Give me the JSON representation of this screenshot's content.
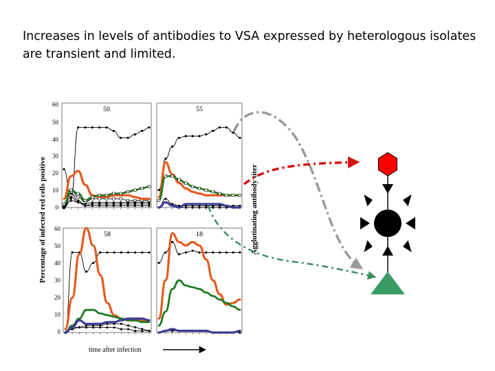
{
  "slide": {
    "title": "Increases in levels of antibodies to VSA expressed by heterologous isolates are transient and limited."
  },
  "colors": {
    "red_line": "#E65A1E",
    "green_line": "#1E7A1E",
    "blue_line": "#3C3C96",
    "red_hexagon": "#FF0000",
    "green_triangle": "#3C9A64",
    "grey_arrow": "#9A9A9A",
    "red_arrow": "#D21414",
    "green_arrow": "#3C8C64"
  },
  "figure": {
    "y_axis_label": "Percentage of infected red cells positive",
    "right_axis_label": "Agglutinating antibody titer",
    "x_axis_label": "time after infection",
    "top_ticks": [
      "60",
      "50",
      "40",
      "30",
      "20",
      "10",
      "0"
    ],
    "bottom_ticks": [
      "60",
      "50",
      "40",
      "30",
      "20",
      "10",
      "0"
    ]
  },
  "diagram": {
    "hexagon_icon": "red-hexagon",
    "circle_icon": "black-circle-with-spikes",
    "triangle_icon": "green-triangle"
  },
  "chart_data": [
    {
      "type": "line",
      "panel_label": "50",
      "ylim": [
        0,
        60
      ],
      "x": [
        0,
        1,
        2,
        3,
        4,
        5,
        6,
        7,
        8,
        9,
        10,
        11,
        12
      ],
      "series": [
        {
          "color": "red",
          "values": [
            5,
            18,
            21,
            13,
            7,
            6,
            6,
            7,
            7,
            7,
            6,
            5,
            5
          ]
        },
        {
          "color": "black",
          "markers": "dot",
          "values": [
            22,
            5,
            46,
            46,
            46,
            46,
            46,
            44,
            40,
            40,
            42,
            44,
            46
          ]
        },
        {
          "color": "green",
          "markers": "square",
          "values": [
            2,
            10,
            8,
            4,
            6,
            7,
            7,
            8,
            8,
            9,
            10,
            11,
            12
          ]
        },
        {
          "color": "black",
          "markers": "square",
          "values": [
            0,
            10,
            6,
            3,
            5,
            5,
            5,
            5,
            5,
            4,
            4,
            4,
            4
          ]
        },
        {
          "color": "black",
          "markers": "dot",
          "values": [
            1,
            8,
            4,
            1,
            2,
            2,
            2,
            2,
            2,
            2,
            2,
            2,
            2
          ]
        },
        {
          "color": "black",
          "markers": "dot",
          "values": [
            0,
            6,
            3,
            1,
            1,
            1,
            1,
            1,
            1,
            1,
            1,
            1,
            1
          ]
        },
        {
          "color": "black",
          "markers": "triangle",
          "values": [
            0,
            4,
            3,
            2,
            3,
            3,
            3,
            3,
            3,
            3,
            3,
            3,
            3
          ]
        }
      ]
    },
    {
      "type": "line",
      "panel_label": "55",
      "ylim": [
        0,
        60
      ],
      "x": [
        0,
        1,
        2,
        3,
        4,
        5,
        6,
        7,
        8,
        9,
        10,
        11,
        12
      ],
      "series": [
        {
          "color": "red",
          "values": [
            6,
            26,
            19,
            14,
            11,
            9,
            8,
            7,
            7,
            7,
            7,
            7,
            7
          ]
        },
        {
          "color": "black",
          "markers": "dot",
          "values": [
            10,
            28,
            35,
            40,
            41,
            41,
            41,
            42,
            44,
            46,
            46,
            43,
            40
          ]
        },
        {
          "color": "green",
          "markers": "square",
          "values": [
            4,
            18,
            18,
            16,
            14,
            12,
            11,
            10,
            9,
            8,
            7,
            7,
            7
          ]
        },
        {
          "color": "blue",
          "values": [
            0,
            3,
            1,
            0,
            2,
            2,
            2,
            2,
            2,
            2,
            1,
            0,
            0
          ]
        },
        {
          "color": "black",
          "markers": "dot",
          "values": [
            0,
            5,
            2,
            1,
            1,
            1,
            1,
            1,
            1,
            1,
            1,
            1,
            1
          ]
        },
        {
          "color": "black",
          "markers": "dot",
          "values": [
            0,
            3,
            1,
            0,
            0,
            0,
            0,
            0,
            0,
            0,
            0,
            0,
            0
          ]
        }
      ]
    },
    {
      "type": "line",
      "panel_label": "58",
      "ylim": [
        0,
        60
      ],
      "x": [
        0,
        1,
        2,
        3,
        4,
        5,
        6,
        7,
        8,
        9,
        10,
        11,
        12
      ],
      "series": [
        {
          "color": "red",
          "values": [
            2,
            20,
            45,
            60,
            50,
            33,
            17,
            10,
            8,
            7,
            7,
            7,
            7
          ]
        },
        {
          "color": "black",
          "markers": "dot",
          "values": [
            0,
            46,
            46,
            35,
            40,
            46,
            46,
            46,
            46,
            46,
            46,
            46,
            46
          ]
        },
        {
          "color": "green",
          "values": [
            0,
            4,
            8,
            13,
            13,
            11,
            10,
            9,
            8,
            7,
            7,
            6,
            6
          ]
        },
        {
          "color": "blue",
          "values": [
            0,
            3,
            7,
            5,
            5,
            5,
            6,
            6,
            7,
            8,
            8,
            8,
            7
          ]
        },
        {
          "color": "black",
          "markers": "dot",
          "values": [
            0,
            3,
            3,
            4,
            4,
            4,
            5,
            5,
            5,
            4,
            3,
            2,
            1
          ]
        },
        {
          "color": "black",
          "markers": "triangle",
          "values": [
            0,
            2,
            3,
            3,
            3,
            3,
            3,
            3,
            2,
            2,
            1,
            1,
            1
          ]
        }
      ]
    },
    {
      "type": "line",
      "panel_label": "18",
      "ylim": [
        0,
        60
      ],
      "x": [
        0,
        1,
        2,
        3,
        4,
        5,
        6,
        7,
        8,
        9,
        10,
        11,
        12
      ],
      "series": [
        {
          "color": "red",
          "values": [
            8,
            30,
            57,
            52,
            50,
            52,
            50,
            42,
            30,
            22,
            16,
            17,
            19
          ]
        },
        {
          "color": "black",
          "markers": "dot",
          "values": [
            40,
            46,
            52,
            45,
            46,
            47,
            46,
            46,
            46,
            46,
            46,
            46,
            46
          ]
        },
        {
          "color": "green",
          "values": [
            4,
            12,
            25,
            30,
            27,
            26,
            25,
            23,
            21,
            19,
            17,
            15,
            13
          ]
        },
        {
          "color": "blue",
          "values": [
            0,
            1,
            2,
            1,
            1,
            1,
            1,
            1,
            0,
            0,
            0,
            0,
            1
          ]
        },
        {
          "color": "black",
          "markers": "dot",
          "values": [
            0,
            1,
            1,
            1,
            1,
            1,
            1,
            1,
            0,
            0,
            0,
            0,
            0
          ]
        }
      ]
    }
  ]
}
